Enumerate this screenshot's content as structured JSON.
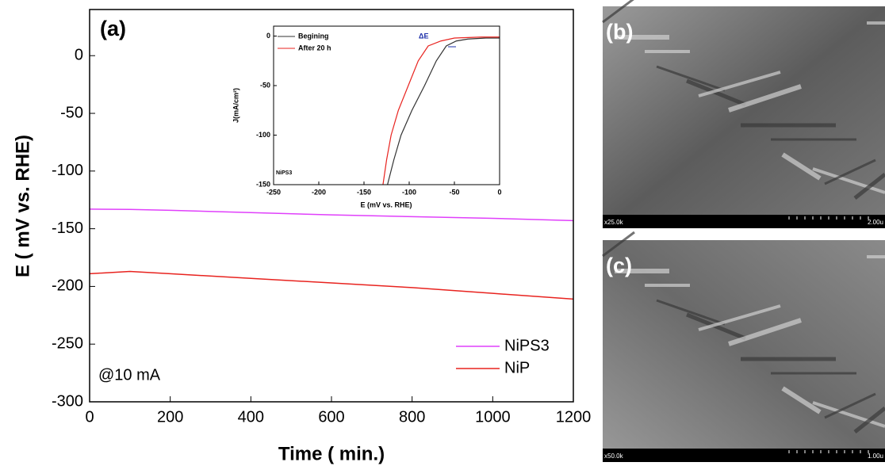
{
  "chart_data": [
    {
      "type": "line",
      "title": "(a)",
      "annotation": "@10 mA",
      "xlabel": "Time ( min.)",
      "ylabel": "E ( mV vs. RHE)",
      "x": [
        0,
        100,
        200,
        400,
        600,
        800,
        1000,
        1200
      ],
      "series": [
        {
          "name": "NiPS3",
          "color": "#e040fb",
          "values": [
            -133,
            -133.3,
            -134,
            -136,
            -138,
            -139.5,
            -141,
            -143
          ]
        },
        {
          "name": "NiP",
          "color": "#e8231f",
          "values": [
            -189,
            -187,
            -189,
            -193,
            -197,
            -201,
            -206,
            -211
          ]
        }
      ],
      "xlim": [
        0,
        1200
      ],
      "xticks": [
        0,
        200,
        400,
        600,
        800,
        1000,
        1200
      ],
      "ylim": [
        -300,
        40
      ],
      "yticks": [
        -300,
        -250,
        -200,
        -150,
        -100,
        -50,
        0
      ],
      "legend": "lower right"
    },
    {
      "type": "line",
      "annotation": "NiPS3",
      "delta_label": "ΔE",
      "xlabel": "E (mV vs. RHE)",
      "ylabel": "J(mA/cm²)",
      "series": [
        {
          "name": "Begining",
          "color": "#333333",
          "x": [
            -124,
            -117,
            -109,
            -97,
            -83,
            -70,
            -59,
            -48,
            -35,
            -15,
            0
          ],
          "values": [
            -150,
            -125,
            -100,
            -75,
            -50,
            -25,
            -10,
            -5,
            -3,
            -2,
            -2
          ]
        },
        {
          "name": "After 20 h",
          "color": "#e8231f",
          "x": [
            -129,
            -125,
            -120,
            -112,
            -101,
            -90,
            -79,
            -65,
            -50,
            -20,
            0
          ],
          "values": [
            -150,
            -125,
            -100,
            -75,
            -50,
            -25,
            -10,
            -5,
            -2,
            -1,
            -1
          ]
        }
      ],
      "xlim": [
        -250,
        0
      ],
      "xticks": [
        -250,
        -200,
        -150,
        -100,
        -50,
        0
      ],
      "ylim": [
        -150,
        10
      ],
      "yticks": [
        -150,
        -100,
        -50,
        0
      ],
      "legend": "upper left"
    }
  ],
  "images": [
    {
      "label": "(b)",
      "magnification": "x25.0k",
      "scale": "2.00u"
    },
    {
      "label": "(c)",
      "magnification": "x50.0k",
      "scale": "1.00u"
    }
  ]
}
